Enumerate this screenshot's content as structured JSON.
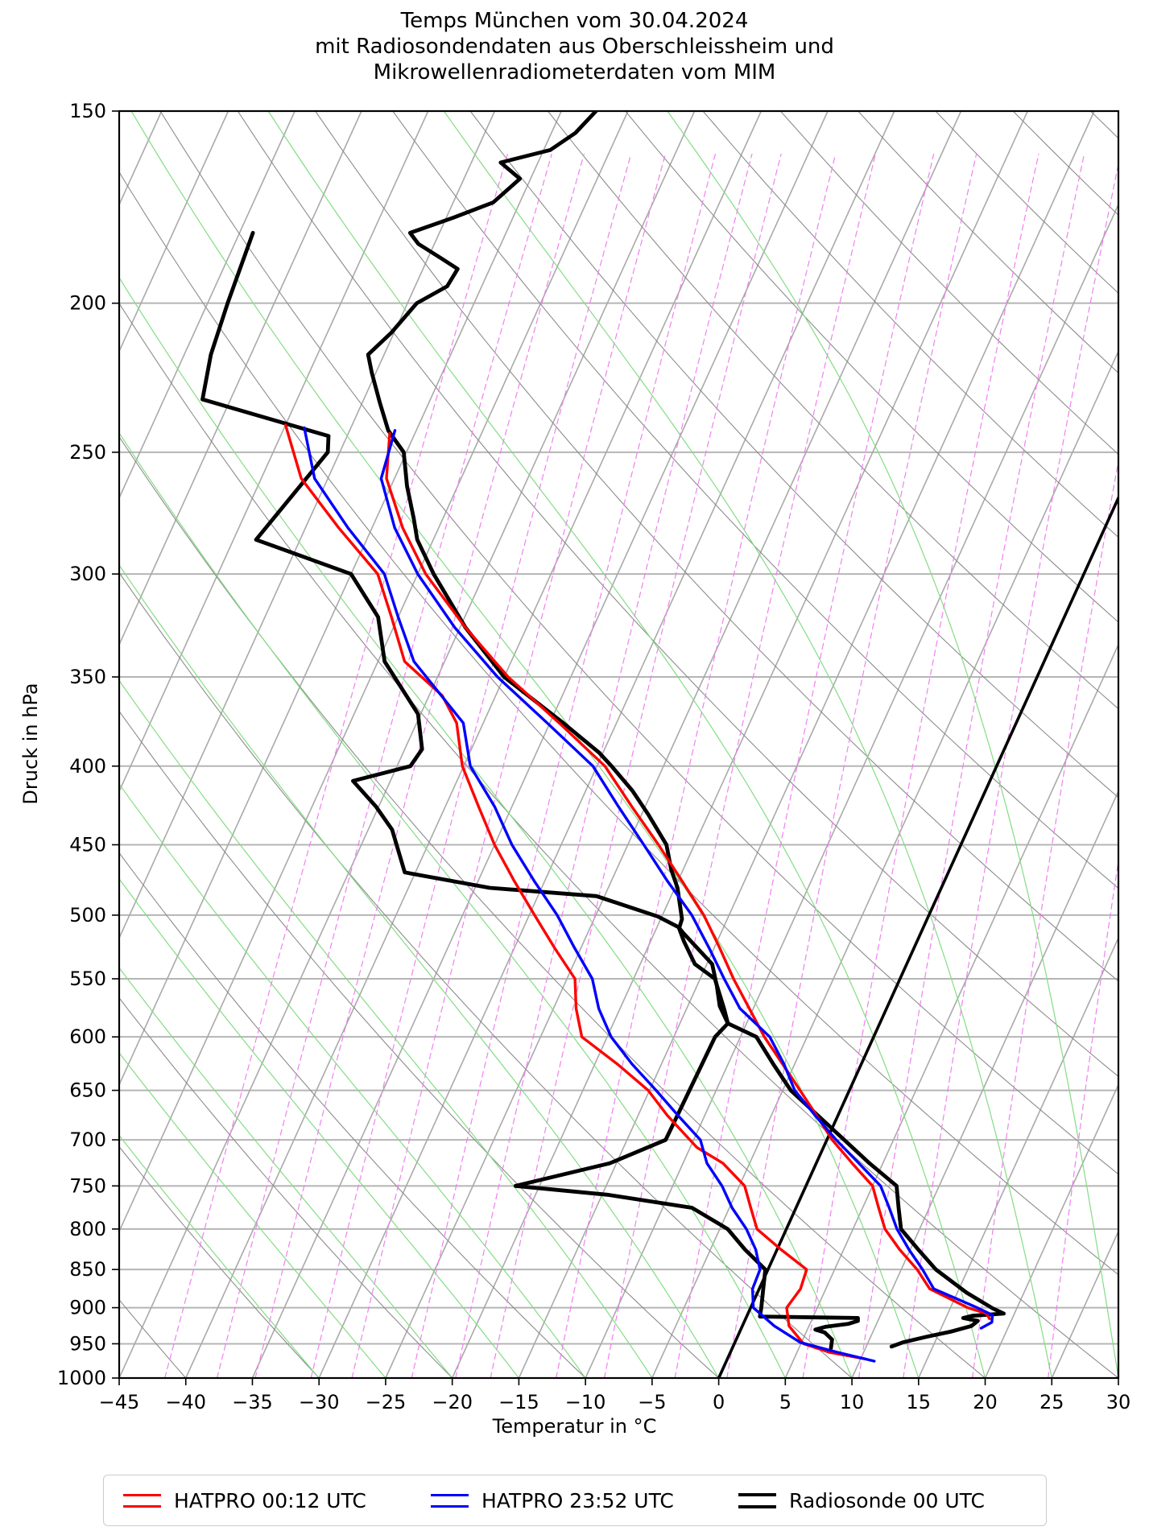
{
  "title": {
    "line1": "Temps München vom 30.04.2024",
    "line2": "mit Radiosondendaten aus Oberschleissheim und",
    "line3": "Mikrowellenradiometerdaten vom MIM"
  },
  "axes": {
    "x_label": "Temperatur in °C",
    "y_label": "Druck in hPa",
    "x_ticks": [
      -45,
      -40,
      -35,
      -30,
      -25,
      -20,
      -15,
      -10,
      -5,
      0,
      5,
      10,
      15,
      20,
      25,
      30
    ],
    "y_ticks": [
      150,
      200,
      250,
      300,
      350,
      400,
      450,
      500,
      550,
      600,
      650,
      700,
      750,
      800,
      850,
      900,
      950,
      1000
    ],
    "x_range_c": [
      -45,
      30
    ],
    "p_range_hpa": [
      150,
      1000
    ],
    "y_scale": "log-pressure",
    "skew": "isotherms tilted right 0.454 px per px height"
  },
  "colors": {
    "hatpro_0012": "#ff0000",
    "hatpro_2352": "#0000ff",
    "radiosonde": "#000000",
    "isotherm": "#a9a9a9",
    "pressure_line": "#b5b5b5",
    "dry_adiabat": "#8c8c8c",
    "moist_adiabat": "#84dc84",
    "mixing_ratio": "#ee82ee",
    "bold_isotherm": "#000000",
    "legend_border": "#cccccc"
  },
  "legend": {
    "items": [
      {
        "label": "HATPRO 00:12 UTC",
        "color": "#ff0000"
      },
      {
        "label": "HATPRO 23:52 UTC",
        "color": "#0000ff"
      },
      {
        "label": "Radiosonde 00 UTC",
        "color": "#000000"
      }
    ]
  },
  "background": {
    "isotherms_c": {
      "start": -90,
      "end": 30,
      "step": 5
    },
    "dry_adiabats_theta_c": {
      "start": -40,
      "end": 170,
      "step": 10
    },
    "moist_adiabats_start_temp_c": [
      -30,
      -25,
      -20,
      -15,
      -10,
      -5,
      0,
      5,
      10,
      15,
      20,
      25,
      30
    ],
    "mixing_ratio_g_kg": [
      0.1,
      0.15,
      0.2,
      0.3,
      0.4,
      0.6,
      0.8,
      1,
      1.5,
      2,
      3,
      4,
      6,
      8,
      10,
      14,
      20,
      28
    ],
    "bold_isotherm_c": 0
  },
  "chart_data": {
    "type": "line",
    "subtype": "skewT-logP-sounding",
    "title": "Temps München vom 30.04.2024 mit Radiosondendaten aus Oberschleissheim und Mikrowellenradiometerdaten vom MIM",
    "xlabel": "Temperatur in °C",
    "ylabel": "Druck in hPa",
    "xlim": [
      -45,
      30
    ],
    "ylim_hpa": [
      1000,
      150
    ],
    "grid": "skewT background (isotherms, dry/moist adiabats, mixing-ratio lines, pressure lines)",
    "legend_position": "bottom",
    "series": [
      {
        "name": "radiosonde-00-temperature",
        "legend": "Radiosonde 00 UTC",
        "color": "#000000",
        "width": 4.8,
        "points_p_t": [
          [
            954,
            11.9
          ],
          [
            948,
            12.6
          ],
          [
            940,
            14.2
          ],
          [
            933,
            15.8
          ],
          [
            925,
            17.2
          ],
          [
            918,
            17.5
          ],
          [
            914,
            16.3
          ],
          [
            911,
            16.9
          ],
          [
            908,
            19.2
          ],
          [
            901,
            18.2
          ],
          [
            880,
            15.7
          ],
          [
            850,
            12.6
          ],
          [
            825,
            10.6
          ],
          [
            800,
            8.6
          ],
          [
            775,
            7.7
          ],
          [
            750,
            6.8
          ],
          [
            725,
            4.0
          ],
          [
            700,
            1.3
          ],
          [
            675,
            -1.5
          ],
          [
            650,
            -4.4
          ],
          [
            625,
            -6.6
          ],
          [
            600,
            -8.8
          ],
          [
            588,
            -11.4
          ],
          [
            575,
            -12.2
          ],
          [
            550,
            -13.9
          ],
          [
            538,
            -15.9
          ],
          [
            520,
            -17.5
          ],
          [
            510,
            -18.3
          ],
          [
            503,
            -18.4
          ],
          [
            480,
            -19.8
          ],
          [
            467,
            -20.9
          ],
          [
            450,
            -22.1
          ],
          [
            430,
            -24.5
          ],
          [
            415,
            -26.5
          ],
          [
            400,
            -28.9
          ],
          [
            392,
            -30.3
          ],
          [
            375,
            -34.0
          ],
          [
            350,
            -40.0
          ],
          [
            325,
            -44.6
          ],
          [
            300,
            -48.8
          ],
          [
            285,
            -51.2
          ],
          [
            276,
            -52.2
          ],
          [
            263,
            -53.8
          ],
          [
            250,
            -55.2
          ],
          [
            242,
            -57.1
          ],
          [
            232,
            -58.7
          ],
          [
            222,
            -60.3
          ],
          [
            216,
            -61.2
          ],
          [
            209,
            -60.2
          ],
          [
            200,
            -59.3
          ],
          [
            195,
            -57.6
          ],
          [
            190,
            -57.4
          ],
          [
            187,
            -59.0
          ],
          [
            183,
            -61.2
          ],
          [
            180,
            -62.2
          ],
          [
            176,
            -59.5
          ],
          [
            172,
            -57.0
          ],
          [
            166,
            -55.8
          ],
          [
            162,
            -57.8
          ],
          [
            159,
            -54.5
          ],
          [
            155,
            -53.2
          ],
          [
            150,
            -52.4
          ]
        ]
      },
      {
        "name": "radiosonde-00-dewpoint",
        "legend": "Radiosonde 00 UTC",
        "color": "#000000",
        "width": 4.8,
        "points_p_t": [
          [
            956,
            7.4
          ],
          [
            944,
            7.2
          ],
          [
            934,
            6.4
          ],
          [
            930,
            5.6
          ],
          [
            926,
            6.3
          ],
          [
            922,
            7.9
          ],
          [
            918,
            8.5
          ],
          [
            914,
            8.4
          ],
          [
            912,
            1.0
          ],
          [
            900,
            0.8
          ],
          [
            875,
            0.3
          ],
          [
            850,
            -0.2
          ],
          [
            825,
            -2.4
          ],
          [
            800,
            -4.4
          ],
          [
            775,
            -7.8
          ],
          [
            760,
            -14.6
          ],
          [
            750,
            -21.8
          ],
          [
            725,
            -15.5
          ],
          [
            700,
            -12.1
          ],
          [
            650,
            -12.0
          ],
          [
            600,
            -11.9
          ],
          [
            588,
            -11.4
          ],
          [
            573,
            -12.6
          ],
          [
            556,
            -13.5
          ],
          [
            538,
            -14.6
          ],
          [
            513,
            -17.9
          ],
          [
            509,
            -18.4
          ],
          [
            501,
            -20.3
          ],
          [
            486,
            -25.6
          ],
          [
            480,
            -33.9
          ],
          [
            469,
            -40.8
          ],
          [
            440,
            -43.2
          ],
          [
            425,
            -45.2
          ],
          [
            409,
            -47.8
          ],
          [
            400,
            -44.0
          ],
          [
            390,
            -43.7
          ],
          [
            370,
            -45.2
          ],
          [
            342,
            -49.5
          ],
          [
            320,
            -51.5
          ],
          [
            300,
            -55.0
          ],
          [
            285,
            -63.3
          ],
          [
            250,
            -60.9
          ],
          [
            244,
            -61.4
          ],
          [
            231,
            -72.1
          ],
          [
            216,
            -73.0
          ],
          [
            200,
            -73.5
          ],
          [
            180,
            -74.0
          ]
        ]
      },
      {
        "name": "hatpro-0012-temperature",
        "legend": "HATPRO 00:12 UTC",
        "color": "#ff0000",
        "width": 3.4,
        "points_p_t": [
          [
            915,
            18.3
          ],
          [
            908,
            17.9
          ],
          [
            900,
            16.3
          ],
          [
            875,
            12.8
          ],
          [
            850,
            11.2
          ],
          [
            825,
            9.2
          ],
          [
            800,
            7.4
          ],
          [
            775,
            6.2
          ],
          [
            750,
            5.0
          ],
          [
            725,
            2.7
          ],
          [
            700,
            0.4
          ],
          [
            675,
            -1.6
          ],
          [
            650,
            -3.7
          ],
          [
            625,
            -5.9
          ],
          [
            600,
            -8.2
          ],
          [
            575,
            -10.3
          ],
          [
            550,
            -12.5
          ],
          [
            525,
            -14.6
          ],
          [
            500,
            -16.9
          ],
          [
            475,
            -19.7
          ],
          [
            450,
            -22.7
          ],
          [
            425,
            -26.0
          ],
          [
            400,
            -29.4
          ],
          [
            375,
            -34.3
          ],
          [
            350,
            -39.7
          ],
          [
            325,
            -44.6
          ],
          [
            300,
            -49.4
          ],
          [
            280,
            -52.7
          ],
          [
            260,
            -55.6
          ],
          [
            243,
            -56.9
          ]
        ]
      },
      {
        "name": "hatpro-0012-dewpoint",
        "legend": "HATPRO 00:12 UTC",
        "color": "#ff0000",
        "width": 3.4,
        "points_p_t": [
          [
            972,
            10.4
          ],
          [
            962,
            7.4
          ],
          [
            950,
            5.2
          ],
          [
            925,
            3.5
          ],
          [
            900,
            2.7
          ],
          [
            875,
            3.1
          ],
          [
            850,
            2.9
          ],
          [
            825,
            0.3
          ],
          [
            800,
            -2.2
          ],
          [
            775,
            -3.4
          ],
          [
            750,
            -4.6
          ],
          [
            725,
            -7.0
          ],
          [
            708,
            -9.5
          ],
          [
            675,
            -12.8
          ],
          [
            650,
            -15.1
          ],
          [
            625,
            -18.3
          ],
          [
            600,
            -21.9
          ],
          [
            575,
            -23.3
          ],
          [
            550,
            -24.4
          ],
          [
            525,
            -27.0
          ],
          [
            500,
            -29.6
          ],
          [
            475,
            -32.3
          ],
          [
            450,
            -35.0
          ],
          [
            425,
            -37.5
          ],
          [
            400,
            -40.1
          ],
          [
            375,
            -42.0
          ],
          [
            360,
            -44.0
          ],
          [
            342,
            -48.0
          ],
          [
            320,
            -50.5
          ],
          [
            300,
            -53.0
          ],
          [
            280,
            -57.5
          ],
          [
            260,
            -62.0
          ],
          [
            240,
            -65.0
          ]
        ]
      },
      {
        "name": "hatpro-2352-temperature",
        "legend": "HATPRO 23:52 UTC",
        "color": "#0000ff",
        "width": 3.4,
        "points_p_t": [
          [
            928,
            18.0
          ],
          [
            920,
            18.6
          ],
          [
            910,
            18.4
          ],
          [
            900,
            17.0
          ],
          [
            875,
            13.1
          ],
          [
            850,
            11.6
          ],
          [
            825,
            9.9
          ],
          [
            800,
            8.3
          ],
          [
            775,
            7.0
          ],
          [
            750,
            5.6
          ],
          [
            725,
            3.2
          ],
          [
            700,
            0.7
          ],
          [
            675,
            -1.7
          ],
          [
            650,
            -4.1
          ],
          [
            625,
            -5.8
          ],
          [
            600,
            -7.8
          ],
          [
            575,
            -11.0
          ],
          [
            550,
            -13.2
          ],
          [
            525,
            -15.4
          ],
          [
            500,
            -17.8
          ],
          [
            475,
            -20.8
          ],
          [
            450,
            -23.8
          ],
          [
            425,
            -27.0
          ],
          [
            400,
            -30.3
          ],
          [
            375,
            -35.2
          ],
          [
            350,
            -40.5
          ],
          [
            325,
            -45.4
          ],
          [
            300,
            -50.0
          ],
          [
            280,
            -53.3
          ],
          [
            260,
            -56.0
          ],
          [
            242,
            -56.6
          ]
        ]
      },
      {
        "name": "hatpro-2352-dewpoint",
        "legend": "HATPRO 23:52 UTC",
        "color": "#0000ff",
        "width": 3.4,
        "points_p_t": [
          [
            975,
            11.1
          ],
          [
            962,
            8.0
          ],
          [
            948,
            4.9
          ],
          [
            925,
            2.4
          ],
          [
            900,
            0.2
          ],
          [
            875,
            -0.5
          ],
          [
            850,
            -0.6
          ],
          [
            825,
            -1.6
          ],
          [
            800,
            -3.0
          ],
          [
            775,
            -4.8
          ],
          [
            750,
            -6.3
          ],
          [
            725,
            -8.2
          ],
          [
            700,
            -9.5
          ],
          [
            675,
            -12.0
          ],
          [
            650,
            -14.5
          ],
          [
            625,
            -17.2
          ],
          [
            600,
            -19.7
          ],
          [
            575,
            -21.6
          ],
          [
            550,
            -23.1
          ],
          [
            525,
            -25.5
          ],
          [
            500,
            -27.9
          ],
          [
            475,
            -30.8
          ],
          [
            450,
            -33.7
          ],
          [
            425,
            -36.3
          ],
          [
            400,
            -39.5
          ],
          [
            375,
            -41.5
          ],
          [
            342,
            -47.3
          ],
          [
            320,
            -50.0
          ],
          [
            300,
            -52.5
          ],
          [
            280,
            -56.8
          ],
          [
            260,
            -61.0
          ],
          [
            241,
            -63.5
          ]
        ]
      }
    ]
  }
}
